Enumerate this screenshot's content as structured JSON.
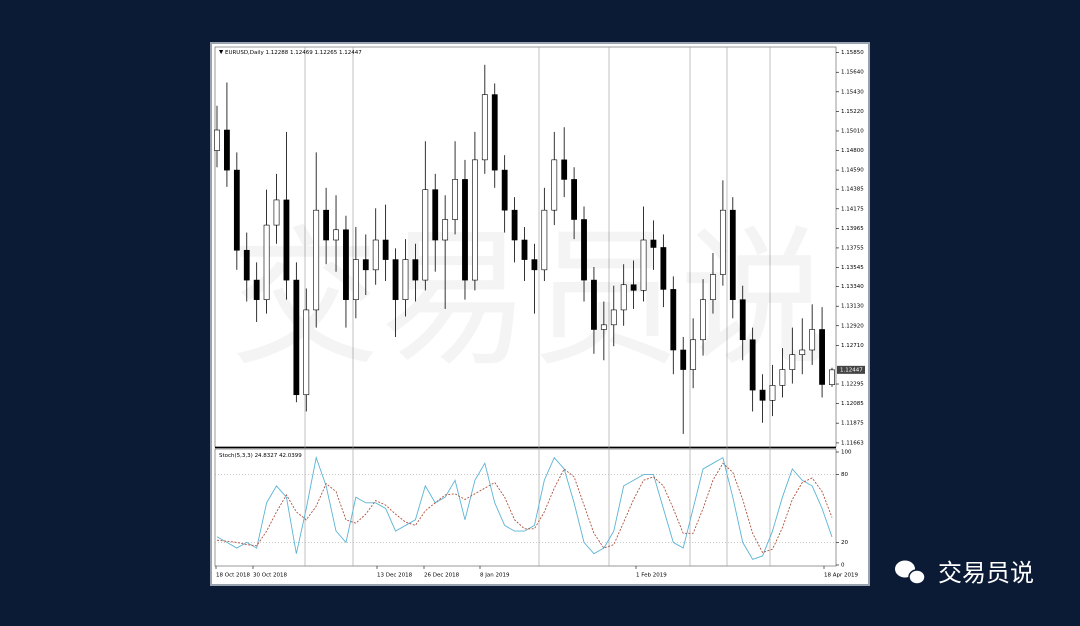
{
  "chart_data": {
    "type": "candlestick",
    "title": "EURUSD,Daily",
    "open": [
      1.148,
      1.1502,
      1.1459,
      1.1373,
      1.1341,
      1.132,
      1.14,
      1.1427,
      1.1341,
      1.1218,
      1.1309,
      1.1416,
      1.1384,
      1.1395,
      1.132,
      1.1363,
      1.1352,
      1.1384,
      1.1363,
      1.132,
      1.1363,
      1.1341,
      1.1438,
      1.1384,
      1.1406,
      1.1449,
      1.1341,
      1.147,
      1.154,
      1.1459,
      1.1416,
      1.1384,
      1.1363,
      1.1352,
      1.1416,
      1.147,
      1.1449,
      1.1406,
      1.1341,
      1.1288,
      1.1293,
      1.1309,
      1.1336,
      1.133,
      1.1384,
      1.1376,
      1.1331,
      1.1266,
      1.1245,
      1.1277,
      1.132,
      1.1347,
      1.1416,
      1.132,
      1.1277,
      1.1223,
      1.1212,
      1.1228,
      1.1245,
      1.1261,
      1.1266,
      1.1288,
      1.12288
    ],
    "high": [
      1.1528,
      1.1553,
      1.1478,
      1.1392,
      1.136,
      1.1438,
      1.1455,
      1.15,
      1.136,
      1.1332,
      1.1478,
      1.144,
      1.1432,
      1.141,
      1.1398,
      1.139,
      1.1418,
      1.1422,
      1.1375,
      1.1385,
      1.138,
      1.149,
      1.1455,
      1.1432,
      1.149,
      1.147,
      1.15,
      1.1572,
      1.1552,
      1.1475,
      1.143,
      1.1398,
      1.138,
      1.144,
      1.15,
      1.1505,
      1.1462,
      1.142,
      1.1355,
      1.1318,
      1.1335,
      1.1358,
      1.1362,
      1.142,
      1.1405,
      1.139,
      1.1345,
      1.128,
      1.13,
      1.1342,
      1.137,
      1.1448,
      1.143,
      1.1335,
      1.129,
      1.124,
      1.125,
      1.1268,
      1.129,
      1.13,
      1.1315,
      1.1312,
      1.12469
    ],
    "low": [
      1.1462,
      1.1441,
      1.1352,
      1.1318,
      1.1296,
      1.1305,
      1.138,
      1.132,
      1.121,
      1.12,
      1.129,
      1.1358,
      1.135,
      1.129,
      1.13,
      1.1325,
      1.1336,
      1.134,
      1.128,
      1.1302,
      1.1318,
      1.133,
      1.135,
      1.131,
      1.139,
      1.132,
      1.133,
      1.1455,
      1.144,
      1.1392,
      1.136,
      1.134,
      1.1305,
      1.134,
      1.14,
      1.143,
      1.1385,
      1.1318,
      1.1262,
      1.1255,
      1.127,
      1.1292,
      1.131,
      1.1318,
      1.1352,
      1.1312,
      1.124,
      1.1176,
      1.1225,
      1.126,
      1.1305,
      1.1335,
      1.13,
      1.1255,
      1.12,
      1.1188,
      1.1195,
      1.1215,
      1.123,
      1.124,
      1.125,
      1.1215,
      1.12265
    ],
    "close": [
      1.1502,
      1.1459,
      1.1373,
      1.1341,
      1.132,
      1.14,
      1.1427,
      1.1341,
      1.1218,
      1.1309,
      1.1416,
      1.1384,
      1.1395,
      1.132,
      1.1363,
      1.1352,
      1.1384,
      1.1363,
      1.132,
      1.1363,
      1.1341,
      1.1438,
      1.1384,
      1.1406,
      1.1449,
      1.1341,
      1.147,
      1.154,
      1.1459,
      1.1416,
      1.1384,
      1.1363,
      1.1352,
      1.1416,
      1.147,
      1.1449,
      1.1406,
      1.1341,
      1.1288,
      1.1293,
      1.1309,
      1.1336,
      1.133,
      1.1384,
      1.1376,
      1.1331,
      1.1266,
      1.1245,
      1.1277,
      1.132,
      1.1347,
      1.1416,
      1.132,
      1.1277,
      1.1223,
      1.1212,
      1.1228,
      1.1245,
      1.1261,
      1.1266,
      1.1288,
      1.1229,
      1.12447
    ],
    "up_color": "#ffffff",
    "down_color": "#000000",
    "ylim": [
      1.1163,
      1.159
    ],
    "yticks": [
      {
        "value": 1.1585,
        "label": "1.15850"
      },
      {
        "value": 1.1564,
        "label": "1.15640"
      },
      {
        "value": 1.1543,
        "label": "1.15430"
      },
      {
        "value": 1.1522,
        "label": "1.15220"
      },
      {
        "value": 1.1501,
        "label": "1.15010"
      },
      {
        "value": 1.148,
        "label": "1.14800"
      },
      {
        "value": 1.1459,
        "label": "1.14590"
      },
      1.14385,
      1.14175,
      1.13965,
      1.13755,
      1.13545,
      {
        "value": 1.1334,
        "label": "1.13340"
      },
      {
        "value": 1.1313,
        "label": "1.13130"
      },
      {
        "value": 1.1292,
        "label": "1.12920"
      },
      {
        "value": 1.1271,
        "label": "1.12710"
      },
      1.12295,
      1.12085,
      1.11875,
      1.11663
    ],
    "date_labels": [
      "18 Oct 2018",
      "30 Oct 2018",
      "13 Dec 2018",
      "26 Dec 2018",
      "8 Jan 2019",
      "1 Feb 2019",
      "18 Apr 2019"
    ],
    "indicator": {
      "type": "line",
      "title": "Stoch(5,3,3)",
      "ylim": [
        0,
        100
      ],
      "yticks": [
        0,
        20,
        80,
        100
      ],
      "levels": [
        20,
        80
      ],
      "series": [
        {
          "color": "#5bb4d4",
          "dash": false,
          "values": [
            25,
            20,
            15,
            20,
            15,
            55,
            70,
            60,
            10,
            50,
            95,
            70,
            30,
            20,
            60,
            55,
            55,
            50,
            30,
            35,
            40,
            70,
            55,
            60,
            75,
            40,
            75,
            90,
            55,
            35,
            30,
            30,
            35,
            75,
            95,
            85,
            55,
            20,
            10,
            15,
            30,
            70,
            75,
            80,
            80,
            50,
            20,
            15,
            50,
            85,
            90,
            95,
            60,
            20,
            5,
            8,
            30,
            60,
            85,
            75,
            70,
            50,
            24.8327
          ]
        },
        {
          "color": "#b0503c",
          "dash": true,
          "values": [
            22,
            21,
            20,
            18,
            17,
            30,
            47,
            62,
            47,
            40,
            52,
            72,
            65,
            40,
            37,
            45,
            57,
            53,
            45,
            38,
            35,
            48,
            55,
            62,
            63,
            58,
            63,
            68,
            73,
            60,
            40,
            32,
            32,
            47,
            68,
            85,
            78,
            53,
            28,
            15,
            18,
            38,
            58,
            75,
            78,
            70,
            50,
            28,
            28,
            50,
            75,
            90,
            82,
            58,
            28,
            11,
            14,
            33,
            58,
            73,
            77,
            65,
            42.0399
          ]
        }
      ]
    }
  },
  "watermark": "交易员说",
  "brand": "交易员说"
}
